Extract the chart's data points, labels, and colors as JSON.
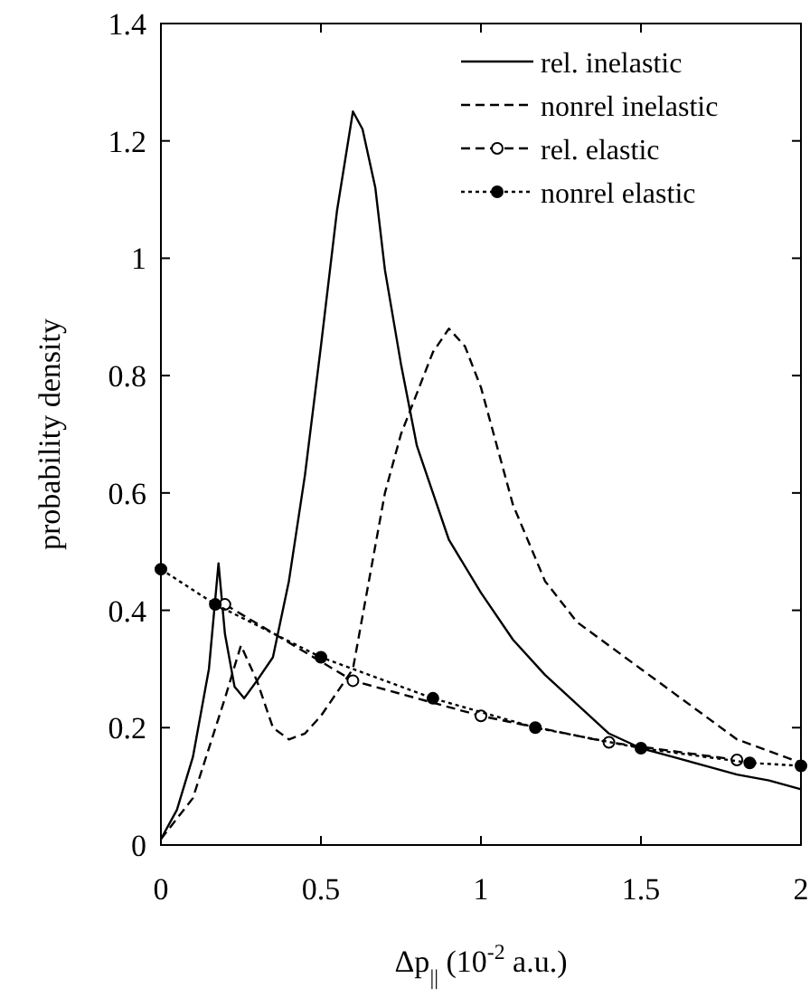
{
  "chart_data": {
    "type": "line",
    "xlabel": "Δp$_{||}$ (10$^{-2}$ a.u.)",
    "ylabel": "probability density",
    "xlim": [
      0,
      2
    ],
    "ylim": [
      0,
      1.4
    ],
    "xticks": [
      0,
      0.5,
      1,
      1.5,
      2
    ],
    "yticks": [
      0,
      0.2,
      0.4,
      0.6,
      0.8,
      1,
      1.2,
      1.4
    ],
    "grid": false,
    "legend": "top right",
    "marker": "none",
    "series": [
      {
        "name": "rel. inelastic",
        "color": "#000000",
        "line_style": "solid",
        "x": [
          0,
          0.05,
          0.1,
          0.15,
          0.18,
          0.2,
          0.23,
          0.26,
          0.3,
          0.35,
          0.4,
          0.45,
          0.5,
          0.55,
          0.6,
          0.63,
          0.67,
          0.7,
          0.75,
          0.8,
          0.85,
          0.9,
          1.0,
          1.1,
          1.2,
          1.3,
          1.4,
          1.5,
          1.6,
          1.7,
          1.8,
          1.9,
          2.0
        ],
        "values": [
          0.01,
          0.06,
          0.15,
          0.3,
          0.48,
          0.36,
          0.27,
          0.25,
          0.28,
          0.32,
          0.45,
          0.63,
          0.85,
          1.08,
          1.25,
          1.22,
          1.12,
          0.98,
          0.82,
          0.68,
          0.6,
          0.52,
          0.43,
          0.35,
          0.29,
          0.24,
          0.19,
          0.165,
          0.15,
          0.135,
          0.12,
          0.11,
          0.095
        ]
      },
      {
        "name": "nonrel  inelastic",
        "color": "#000000",
        "line_style": "dashed",
        "x": [
          0,
          0.1,
          0.2,
          0.25,
          0.3,
          0.35,
          0.4,
          0.45,
          0.5,
          0.6,
          0.65,
          0.7,
          0.75,
          0.8,
          0.85,
          0.9,
          0.95,
          1.0,
          1.05,
          1.1,
          1.2,
          1.3,
          1.4,
          1.5,
          1.6,
          1.7,
          1.8,
          1.9,
          2.0
        ],
        "values": [
          0.01,
          0.08,
          0.25,
          0.34,
          0.28,
          0.2,
          0.18,
          0.19,
          0.22,
          0.3,
          0.45,
          0.6,
          0.7,
          0.77,
          0.84,
          0.88,
          0.85,
          0.78,
          0.68,
          0.58,
          0.45,
          0.38,
          0.34,
          0.3,
          0.26,
          0.22,
          0.18,
          0.16,
          0.14
        ]
      },
      {
        "name": "rel. elastic",
        "color": "#000000",
        "line_style": "dashed",
        "marker": "circle",
        "x": [
          0.2,
          0.6,
          1.0,
          1.4,
          1.8
        ],
        "values": [
          0.41,
          0.28,
          0.22,
          0.175,
          0.145
        ]
      },
      {
        "name": "nonrel  elastic",
        "color": "#000000",
        "line_style": "dotted",
        "marker": "circle",
        "x": [
          0,
          0.17,
          0.5,
          0.85,
          1.17,
          1.5,
          1.84,
          2.0
        ],
        "values": [
          0.47,
          0.41,
          0.32,
          0.25,
          0.2,
          0.165,
          0.14,
          0.135
        ]
      }
    ]
  }
}
